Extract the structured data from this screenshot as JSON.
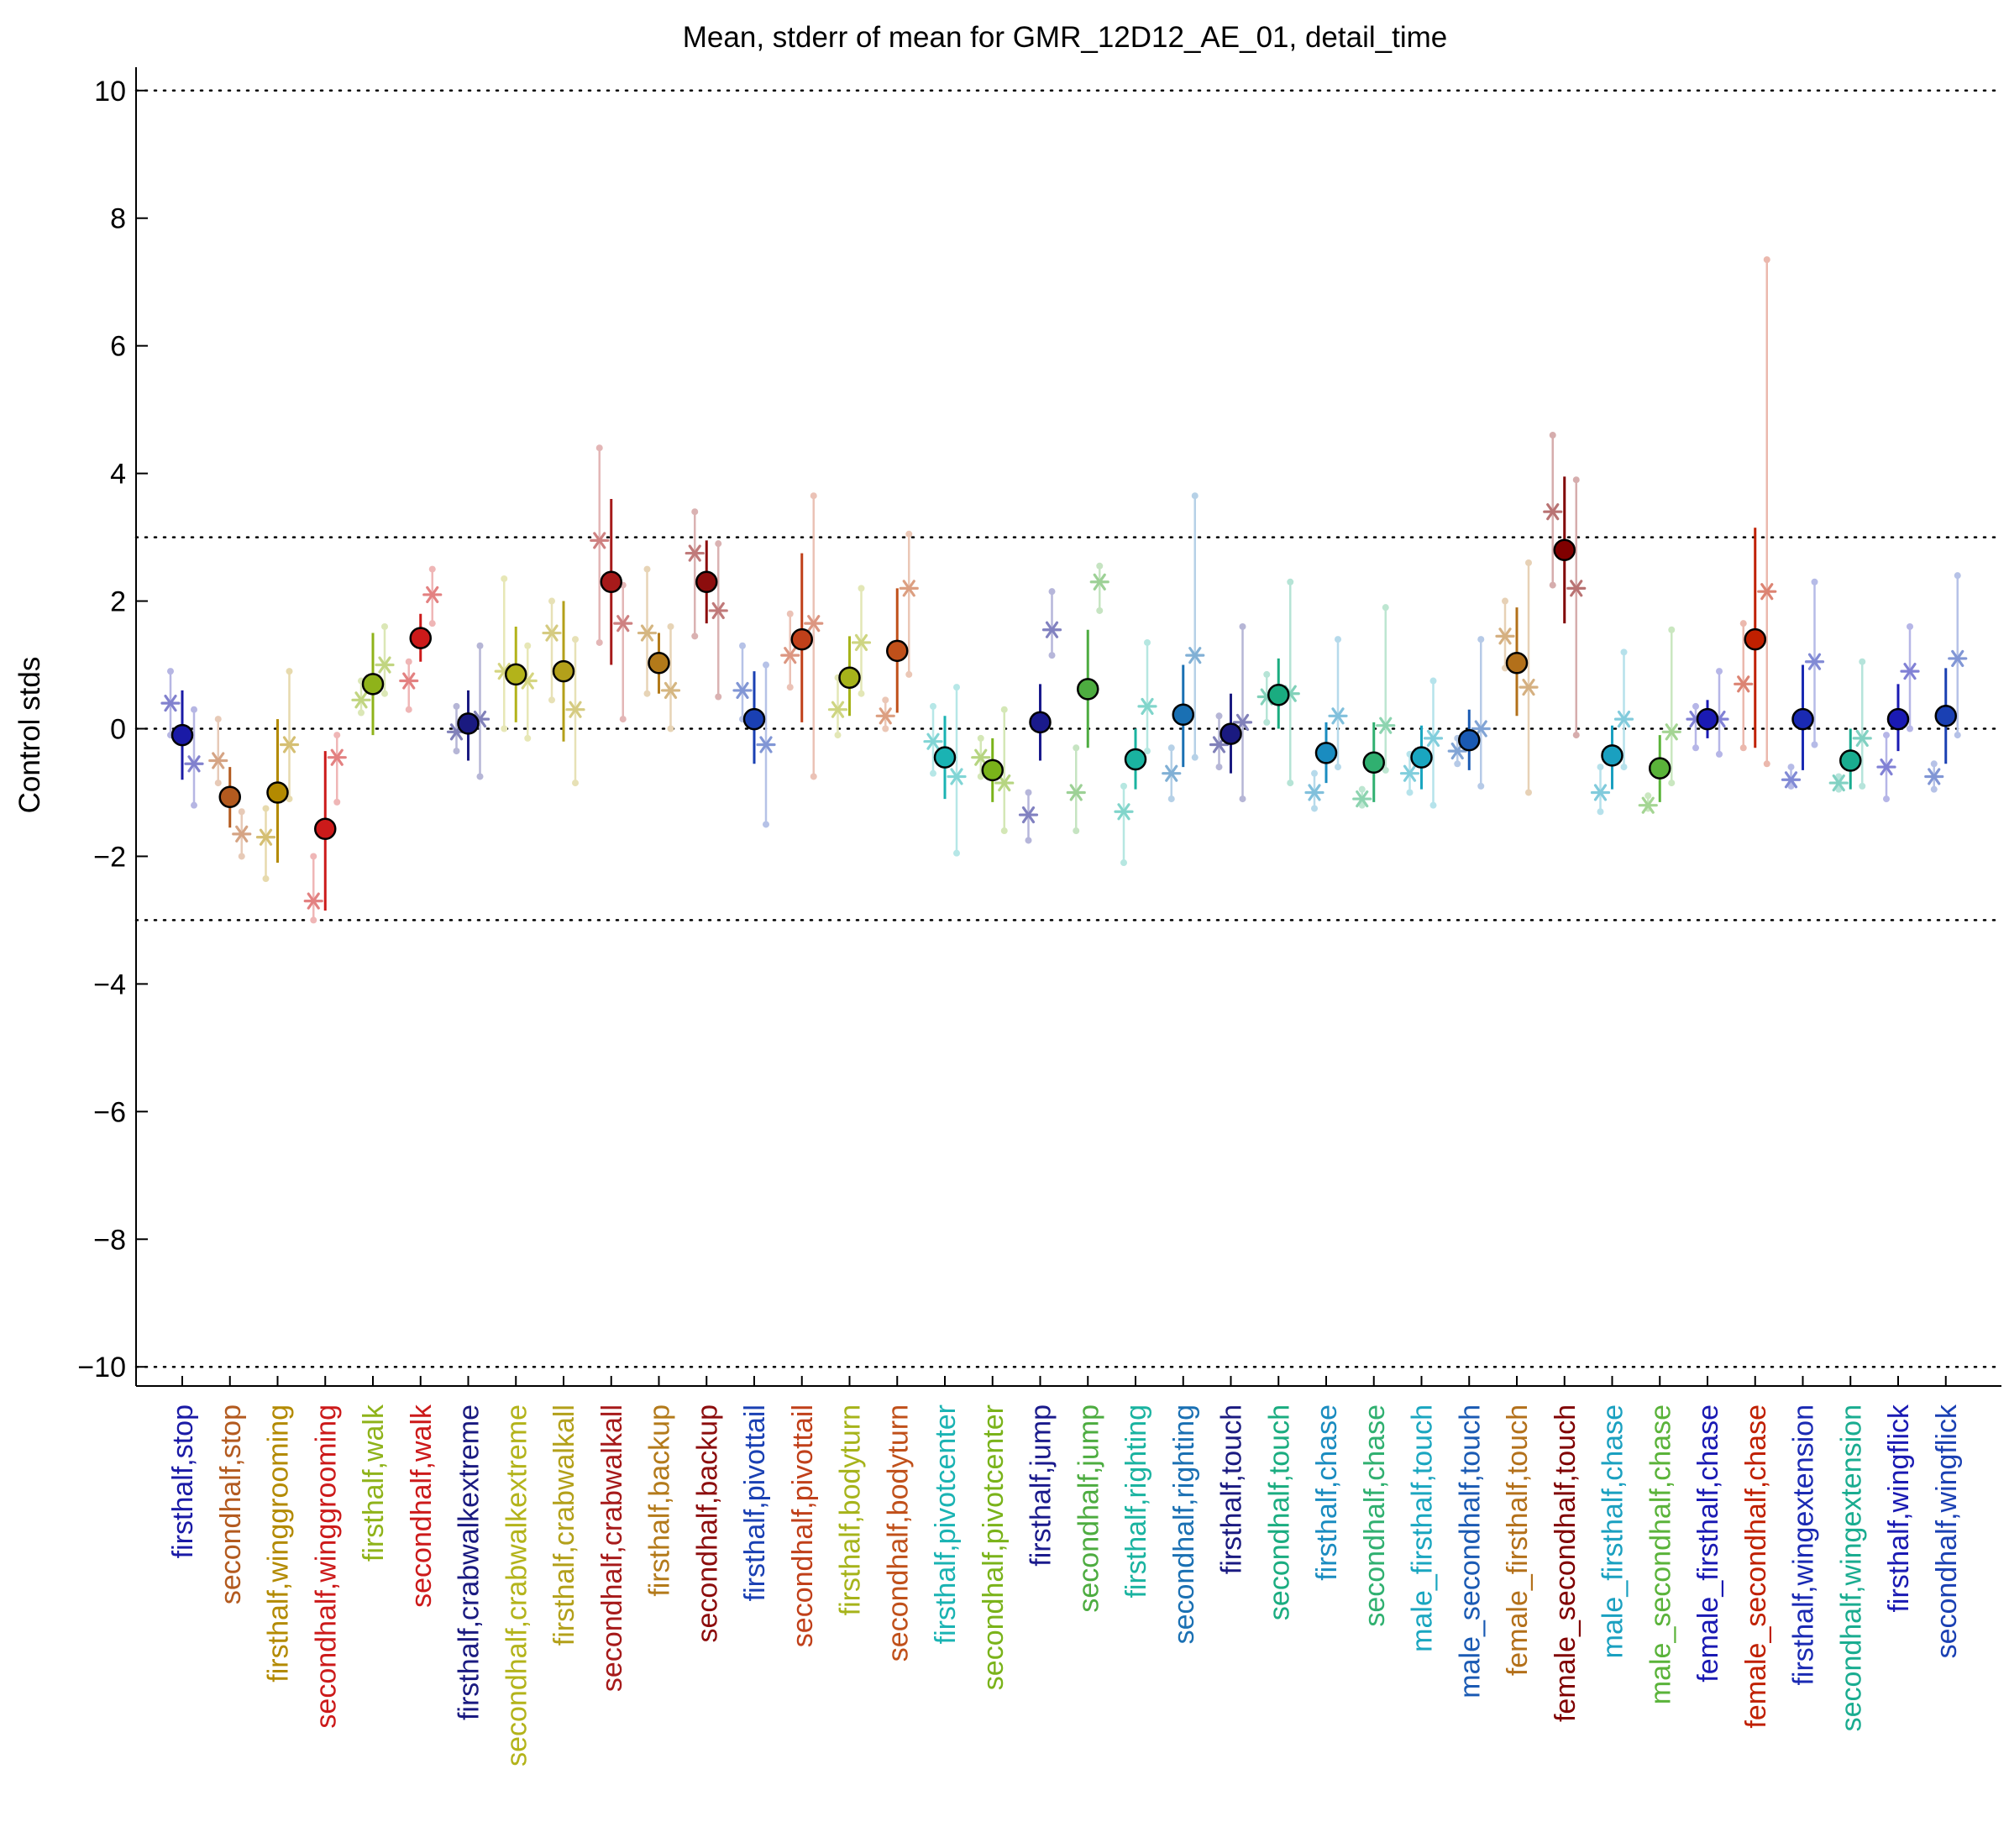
{
  "chart_data": {
    "type": "scatter",
    "title": "Mean, stderr of mean for GMR_12D12_AE_01, detail_time",
    "xlabel": "",
    "ylabel": "Control stds",
    "ylim": [
      -10.3,
      10.3
    ],
    "yticks": [
      -10,
      -8,
      -6,
      -4,
      -2,
      0,
      2,
      4,
      6,
      8,
      10
    ],
    "yticklabels": [
      "−10",
      "−8",
      "−6",
      "−4",
      "−2",
      "0",
      "2",
      "4",
      "6",
      "8",
      "10"
    ],
    "reference_lines": [
      -10,
      -3,
      0,
      3,
      10
    ],
    "grid": false,
    "legend": "none",
    "categories": [
      {
        "label": "firsthalf,stop",
        "color": "#1a1aa6",
        "mean": -0.1,
        "err_lo": -0.8,
        "err_hi": 0.6,
        "star_left": 0.4,
        "star_right": -0.55,
        "range_left": [
          -0.1,
          0.9
        ],
        "range_right": [
          -1.2,
          0.3
        ]
      },
      {
        "label": "secondhalf,stop",
        "color": "#b35a1f",
        "mean": -1.07,
        "err_lo": -1.55,
        "err_hi": -0.6,
        "star_left": -0.5,
        "star_right": -1.65,
        "range_left": [
          -0.85,
          0.15
        ],
        "range_right": [
          -2.0,
          -1.3
        ]
      },
      {
        "label": "firsthalf,winggrooming",
        "color": "#b38a00",
        "mean": -1.0,
        "err_lo": -2.1,
        "err_hi": 0.15,
        "star_left": -1.7,
        "star_right": -0.25,
        "range_left": [
          -2.35,
          -1.25
        ],
        "range_right": [
          -1.1,
          0.9
        ]
      },
      {
        "label": "secondhalf,winggrooming",
        "color": "#cc1a1a",
        "mean": -1.57,
        "err_lo": -2.85,
        "err_hi": -0.35,
        "star_left": -2.7,
        "star_right": -0.45,
        "range_left": [
          -3.0,
          -2.0
        ],
        "range_right": [
          -1.15,
          -0.1
        ]
      },
      {
        "label": "firsthalf,walk",
        "color": "#8fb31a",
        "mean": 0.7,
        "err_lo": -0.1,
        "err_hi": 1.5,
        "star_left": 0.45,
        "star_right": 1.0,
        "range_left": [
          0.25,
          0.75
        ],
        "range_right": [
          0.55,
          1.6
        ]
      },
      {
        "label": "secondhalf,walk",
        "color": "#cc1a1a",
        "mean": 1.42,
        "err_lo": 1.05,
        "err_hi": 1.8,
        "star_left": 0.75,
        "star_right": 2.1,
        "range_left": [
          0.3,
          1.05
        ],
        "range_right": [
          1.65,
          2.5
        ]
      },
      {
        "label": "firsthalf,crabwalkextreme",
        "color": "#1a1a80",
        "mean": 0.08,
        "err_lo": -0.5,
        "err_hi": 0.6,
        "star_left": -0.05,
        "star_right": 0.15,
        "range_left": [
          -0.35,
          0.35
        ],
        "range_right": [
          -0.75,
          1.3
        ]
      },
      {
        "label": "secondhalf,crabwalkextreme",
        "color": "#b3b31a",
        "mean": 0.85,
        "err_lo": 0.1,
        "err_hi": 1.6,
        "star_left": 0.9,
        "star_right": 0.75,
        "range_left": [
          0.0,
          2.35
        ],
        "range_right": [
          -0.15,
          1.3
        ]
      },
      {
        "label": "firsthalf,crabwalkall",
        "color": "#b3a01a",
        "mean": 0.9,
        "err_lo": -0.2,
        "err_hi": 2.0,
        "star_left": 1.5,
        "star_right": 0.3,
        "range_left": [
          0.45,
          2.0
        ],
        "range_right": [
          -0.85,
          1.4
        ]
      },
      {
        "label": "secondhalf,crabwalkall",
        "color": "#a61a1a",
        "mean": 2.3,
        "err_lo": 1.0,
        "err_hi": 3.6,
        "star_left": 2.95,
        "star_right": 1.65,
        "range_left": [
          1.35,
          4.4
        ],
        "range_right": [
          0.15,
          2.25
        ]
      },
      {
        "label": "firsthalf,backup",
        "color": "#b37a1a",
        "mean": 1.03,
        "err_lo": 0.55,
        "err_hi": 1.5,
        "star_left": 1.5,
        "star_right": 0.6,
        "range_left": [
          0.55,
          2.5
        ],
        "range_right": [
          0.0,
          1.6
        ]
      },
      {
        "label": "secondhalf,backup",
        "color": "#8c0d0d",
        "mean": 2.3,
        "err_lo": 1.65,
        "err_hi": 2.95,
        "star_left": 2.75,
        "star_right": 1.85,
        "range_left": [
          1.45,
          3.4
        ],
        "range_right": [
          0.5,
          2.9
        ]
      },
      {
        "label": "firsthalf,pivottail",
        "color": "#1a40b3",
        "mean": 0.15,
        "err_lo": -0.55,
        "err_hi": 0.9,
        "star_left": 0.6,
        "star_right": -0.25,
        "range_left": [
          0.15,
          1.3
        ],
        "range_right": [
          -1.5,
          1.0
        ]
      },
      {
        "label": "secondhalf,pivottail",
        "color": "#c0401a",
        "mean": 1.4,
        "err_lo": 0.1,
        "err_hi": 2.75,
        "star_left": 1.15,
        "star_right": 1.65,
        "range_left": [
          0.65,
          1.8
        ],
        "range_right": [
          -0.75,
          3.65
        ]
      },
      {
        "label": "firsthalf,bodyturn",
        "color": "#a6b31a",
        "mean": 0.8,
        "err_lo": 0.2,
        "err_hi": 1.45,
        "star_left": 0.3,
        "star_right": 1.35,
        "range_left": [
          -0.1,
          0.8
        ],
        "range_right": [
          0.55,
          2.2
        ]
      },
      {
        "label": "secondhalf,bodyturn",
        "color": "#c0501a",
        "mean": 1.22,
        "err_lo": 0.25,
        "err_hi": 2.2,
        "star_left": 0.2,
        "star_right": 2.2,
        "range_left": [
          0.0,
          0.45
        ],
        "range_right": [
          0.85,
          3.05
        ]
      },
      {
        "label": "firsthalf,pivotcenter",
        "color": "#1ab3b3",
        "mean": -0.45,
        "err_lo": -1.1,
        "err_hi": 0.2,
        "star_left": -0.2,
        "star_right": -0.75,
        "range_left": [
          -0.7,
          0.35
        ],
        "range_right": [
          -1.95,
          0.65
        ]
      },
      {
        "label": "secondhalf,pivotcenter",
        "color": "#7ab31a",
        "mean": -0.65,
        "err_lo": -1.15,
        "err_hi": -0.15,
        "star_left": -0.45,
        "star_right": -0.85,
        "range_left": [
          -0.75,
          -0.15
        ],
        "range_right": [
          -1.6,
          0.3
        ]
      },
      {
        "label": "firsthalf,jump",
        "color": "#1a1a8c",
        "mean": 0.1,
        "err_lo": -0.5,
        "err_hi": 0.7,
        "star_left": -1.35,
        "star_right": 1.55,
        "range_left": [
          -1.75,
          -1.0
        ],
        "range_right": [
          1.15,
          2.15
        ]
      },
      {
        "label": "secondhalf,jump",
        "color": "#4dac40",
        "mean": 0.62,
        "err_lo": -0.3,
        "err_hi": 1.55,
        "star_left": -1.0,
        "star_right": 2.3,
        "range_left": [
          -1.6,
          -0.3
        ],
        "range_right": [
          1.85,
          2.55
        ]
      },
      {
        "label": "firsthalf,righting",
        "color": "#1ab3a0",
        "mean": -0.48,
        "err_lo": -0.95,
        "err_hi": 0.0,
        "star_left": -1.3,
        "star_right": 0.35,
        "range_left": [
          -2.1,
          -0.9
        ],
        "range_right": [
          -0.35,
          1.35
        ]
      },
      {
        "label": "secondhalf,righting",
        "color": "#1a70b3",
        "mean": 0.22,
        "err_lo": -0.6,
        "err_hi": 1.0,
        "star_left": -0.7,
        "star_right": 1.15,
        "range_left": [
          -1.1,
          -0.3
        ],
        "range_right": [
          -0.45,
          3.65
        ]
      },
      {
        "label": "firsthalf,touch",
        "color": "#1a1a80",
        "mean": -0.08,
        "err_lo": -0.7,
        "err_hi": 0.55,
        "star_left": -0.25,
        "star_right": 0.1,
        "range_left": [
          -0.6,
          0.2
        ],
        "range_right": [
          -1.1,
          1.6
        ]
      },
      {
        "label": "secondhalf,touch",
        "color": "#1aac80",
        "mean": 0.53,
        "err_lo": 0.0,
        "err_hi": 1.1,
        "star_left": 0.5,
        "star_right": 0.55,
        "range_left": [
          0.1,
          0.85
        ],
        "range_right": [
          -0.85,
          2.3
        ]
      },
      {
        "label": "firsthalf,chase",
        "color": "#1a8cc0",
        "mean": -0.38,
        "err_lo": -0.85,
        "err_hi": 0.1,
        "star_left": -1.0,
        "star_right": 0.2,
        "range_left": [
          -1.25,
          -0.7
        ],
        "range_right": [
          -0.6,
          1.4
        ]
      },
      {
        "label": "secondhalf,chase",
        "color": "#30b070",
        "mean": -0.53,
        "err_lo": -1.15,
        "err_hi": 0.1,
        "star_left": -1.1,
        "star_right": 0.05,
        "range_left": [
          -1.2,
          -0.95
        ],
        "range_right": [
          -0.65,
          1.9
        ]
      },
      {
        "label": "male_firsthalf,touch",
        "color": "#1aa6c0",
        "mean": -0.45,
        "err_lo": -0.95,
        "err_hi": 0.05,
        "star_left": -0.7,
        "star_right": -0.15,
        "range_left": [
          -1.0,
          -0.4
        ],
        "range_right": [
          -1.2,
          0.75
        ]
      },
      {
        "label": "male_secondhalf,touch",
        "color": "#1a5ab3",
        "mean": -0.18,
        "err_lo": -0.65,
        "err_hi": 0.3,
        "star_left": -0.35,
        "star_right": 0.0,
        "range_left": [
          -0.55,
          -0.15
        ],
        "range_right": [
          -0.9,
          1.4
        ]
      },
      {
        "label": "female_firsthalf,touch",
        "color": "#b3701a",
        "mean": 1.03,
        "err_lo": 0.2,
        "err_hi": 1.9,
        "star_left": 1.45,
        "star_right": 0.65,
        "range_left": [
          0.95,
          2.0
        ],
        "range_right": [
          -1.0,
          2.6
        ]
      },
      {
        "label": "female_secondhalf,touch",
        "color": "#800000",
        "mean": 2.8,
        "err_lo": 1.65,
        "err_hi": 3.95,
        "star_left": 3.4,
        "star_right": 2.2,
        "range_left": [
          2.25,
          4.6
        ],
        "range_right": [
          -0.1,
          3.9
        ]
      },
      {
        "label": "male_firsthalf,chase",
        "color": "#1aa0c0",
        "mean": -0.42,
        "err_lo": -0.95,
        "err_hi": 0.05,
        "star_left": -1.0,
        "star_right": 0.15,
        "range_left": [
          -1.3,
          -0.6
        ],
        "range_right": [
          -0.6,
          1.2
        ]
      },
      {
        "label": "male_secondhalf,chase",
        "color": "#5ab33a",
        "mean": -0.62,
        "err_lo": -1.15,
        "err_hi": -0.1,
        "star_left": -1.2,
        "star_right": -0.05,
        "range_left": [
          -1.25,
          -1.05
        ],
        "range_right": [
          -0.85,
          1.55
        ]
      },
      {
        "label": "female_firsthalf,chase",
        "color": "#1a1ab3",
        "mean": 0.15,
        "err_lo": -0.15,
        "err_hi": 0.45,
        "star_left": 0.15,
        "star_right": 0.15,
        "range_left": [
          -0.3,
          0.35
        ],
        "range_right": [
          -0.4,
          0.9
        ]
      },
      {
        "label": "female_secondhalf,chase",
        "color": "#c02000",
        "mean": 1.4,
        "err_lo": -0.3,
        "err_hi": 3.15,
        "star_left": 0.7,
        "star_right": 2.15,
        "range_left": [
          -0.3,
          1.65
        ],
        "range_right": [
          -0.55,
          7.35
        ]
      },
      {
        "label": "firsthalf,wingextension",
        "color": "#1a2ab3",
        "mean": 0.15,
        "err_lo": -0.65,
        "err_hi": 1.0,
        "star_left": -0.8,
        "star_right": 1.05,
        "range_left": [
          -0.9,
          -0.6
        ],
        "range_right": [
          -0.25,
          2.3
        ]
      },
      {
        "label": "secondhalf,wingextension",
        "color": "#1aac90",
        "mean": -0.5,
        "err_lo": -0.95,
        "err_hi": 0.0,
        "star_left": -0.85,
        "star_right": -0.15,
        "range_left": [
          -0.95,
          -0.75
        ],
        "range_right": [
          -0.9,
          1.05
        ]
      },
      {
        "label": "firsthalf,wingflick",
        "color": "#1a1ab3",
        "mean": 0.15,
        "err_lo": -0.35,
        "err_hi": 0.7,
        "star_left": -0.6,
        "star_right": 0.9,
        "range_left": [
          -1.1,
          -0.1
        ],
        "range_right": [
          0.0,
          1.6
        ]
      },
      {
        "label": "secondhalf,wingflick",
        "color": "#1a40b3",
        "mean": 0.2,
        "err_lo": -0.55,
        "err_hi": 0.95,
        "star_left": -0.75,
        "star_right": 1.1,
        "range_left": [
          -0.95,
          -0.55
        ],
        "range_right": [
          -0.1,
          2.4
        ]
      }
    ]
  }
}
